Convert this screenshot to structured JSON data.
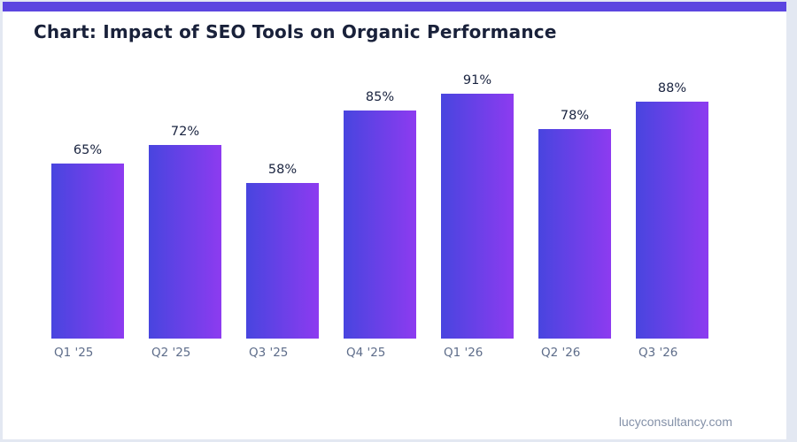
{
  "page": {
    "background_color": "#e3e8f2",
    "card_color": "#ffffff",
    "accent_color": "#5b45e0"
  },
  "chart_data": {
    "type": "bar",
    "title": "Chart: Impact of SEO Tools on Organic Performance",
    "categories": [
      "Q1 '25",
      "Q2 '25",
      "Q3 '25",
      "Q4 '25",
      "Q1 '26",
      "Q2 '26",
      "Q3 '26"
    ],
    "values": [
      65,
      72,
      58,
      85,
      91,
      78,
      88
    ],
    "value_labels": [
      "65%",
      "72%",
      "58%",
      "85%",
      "91%",
      "78%",
      "88%"
    ],
    "xlabel": "",
    "ylabel": "",
    "ylim": [
      0,
      100
    ],
    "grid": false,
    "legend": false,
    "bar_gradient": [
      "#4845df",
      "#8d3bf0"
    ]
  },
  "footer": {
    "watermark": "lucyconsultancy.com"
  }
}
